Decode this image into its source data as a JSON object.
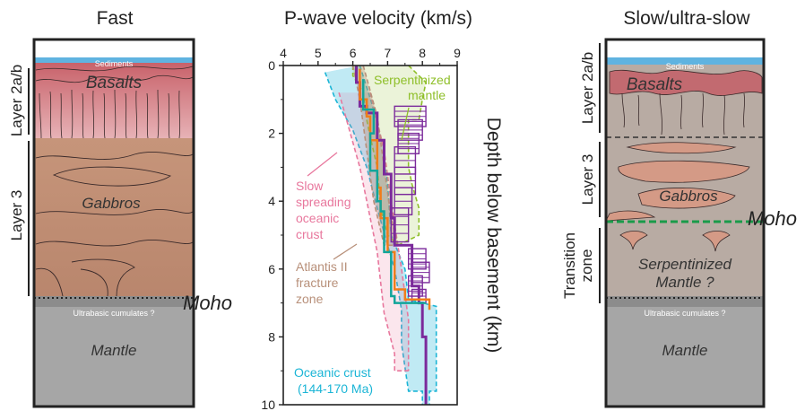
{
  "left_column": {
    "title": "Fast",
    "sediments": "Sediments",
    "basalts": "Basalts",
    "gabbros": "Gabbros",
    "ultrabasic": "Ultrabasic cumulates ?",
    "mantle": "Mantle",
    "layer_2ab": "Layer 2a/b",
    "layer_3": "Layer 3",
    "moho": "Moho"
  },
  "right_column": {
    "title": "Slow/ultra-slow",
    "sediments": "Sediments",
    "basalts": "Basalts",
    "gabbros": "Gabbros",
    "serpentinized": "Serpentinized",
    "mantle_q": "Mantle ?",
    "ultrabasic": "Ultrabasic cumulates ?",
    "mantle": "Mantle",
    "layer_2ab": "Layer 2a/b",
    "layer_3": "Layer 3",
    "transition_1": "Transition",
    "transition_2": "zone",
    "moho": "Moho"
  },
  "chart_data": {
    "type": "line",
    "title": "P-wave velocity (km/s)",
    "ylabel": "Depth below basement (km)",
    "xlim": [
      4,
      9
    ],
    "ylim": [
      10,
      0
    ],
    "x_ticks": [
      "4",
      "5",
      "6",
      "7",
      "8",
      "9"
    ],
    "y_ticks": [
      "0",
      "2",
      "4",
      "6",
      "8",
      "10"
    ],
    "annotations": {
      "serpentinized_1": "Serpentinized",
      "serpentinized_2": "mantle",
      "slow_1": "Slow",
      "slow_2": "spreading",
      "slow_3": "oceanic",
      "slow_4": "crust",
      "atlantis_1": "Atlantis II",
      "atlantis_2": "fracture",
      "atlantis_3": "zone",
      "oceanic_1": "Oceanic crust",
      "oceanic_2": "(144-170 Ma)"
    },
    "colors": {
      "serpentinized": "#8fbf2a",
      "slow_spreading": "#e8779d",
      "atlantis": "#b8907a",
      "oceanic_crust": "#1bb5d6",
      "profile_purple": "#7b2a9b",
      "profile_orange": "#f07d1a",
      "profile_teal": "#12a59a"
    },
    "series": [
      {
        "name": "Serpentinized mantle",
        "kind": "envelope",
        "left": [
          [
            6.0,
            0
          ],
          [
            6.0,
            0.3
          ],
          [
            6.3,
            0.8
          ],
          [
            6.4,
            1.6
          ],
          [
            6.5,
            2.1
          ],
          [
            6.7,
            3.0
          ],
          [
            6.8,
            4.2
          ],
          [
            7.0,
            5.0
          ],
          [
            7.3,
            5.3
          ]
        ],
        "right": [
          [
            7.6,
            0
          ],
          [
            8.1,
            0.5
          ],
          [
            8.0,
            1.0
          ],
          [
            7.9,
            1.6
          ],
          [
            7.6,
            1.6
          ],
          [
            7.6,
            3.0
          ],
          [
            7.7,
            3.5
          ],
          [
            7.9,
            4.2
          ],
          [
            7.9,
            5.0
          ],
          [
            7.3,
            5.3
          ]
        ]
      },
      {
        "name": "Slow spreading oceanic crust",
        "kind": "envelope",
        "left": [
          [
            5.6,
            0.8
          ],
          [
            6.2,
            3.0
          ],
          [
            6.7,
            5.5
          ],
          [
            6.9,
            7.3
          ],
          [
            7.2,
            8.5
          ],
          [
            7.2,
            9.0
          ],
          [
            7.6,
            9.0
          ]
        ],
        "right": [
          [
            6.5,
            0.8
          ],
          [
            6.9,
            2.5
          ],
          [
            7.1,
            4.0
          ],
          [
            7.4,
            6.0
          ],
          [
            7.6,
            7.5
          ],
          [
            7.6,
            9.0
          ]
        ]
      },
      {
        "name": "Atlantis II fracture zone",
        "kind": "envelope",
        "left": [
          [
            6.0,
            0
          ],
          [
            6.2,
            1.0
          ],
          [
            6.4,
            2.5
          ],
          [
            6.6,
            4.0
          ],
          [
            6.9,
            5.3
          ],
          [
            7.3,
            5.3
          ]
        ],
        "right": [
          [
            6.3,
            0
          ],
          [
            6.7,
            1.5
          ],
          [
            6.9,
            3.0
          ],
          [
            7.1,
            4.5
          ],
          [
            7.3,
            5.3
          ]
        ]
      },
      {
        "name": "Oceanic crust (144-170 Ma)",
        "kind": "envelope",
        "left": [
          [
            5.2,
            0.2
          ],
          [
            5.5,
            1.0
          ],
          [
            6.0,
            1.9
          ],
          [
            6.4,
            3.0
          ],
          [
            6.7,
            4.2
          ],
          [
            7.0,
            5.3
          ],
          [
            7.2,
            6.0
          ],
          [
            7.4,
            7.2
          ],
          [
            7.4,
            8.2
          ],
          [
            7.6,
            9.6
          ],
          [
            8.0,
            9.6
          ],
          [
            8.0,
            10.0
          ]
        ],
        "right": [
          [
            6.2,
            0
          ],
          [
            6.6,
            1.3
          ],
          [
            6.9,
            2.5
          ],
          [
            7.0,
            3.5
          ],
          [
            7.1,
            5.0
          ],
          [
            7.5,
            6.0
          ],
          [
            7.6,
            6.9
          ],
          [
            8.0,
            7.0
          ],
          [
            8.4,
            7.1
          ],
          [
            8.4,
            9.6
          ],
          [
            8.2,
            9.6
          ],
          [
            8.2,
            10.0
          ]
        ]
      },
      {
        "name": "Profile (purple)",
        "kind": "step",
        "points": [
          [
            6.1,
            0
          ],
          [
            6.2,
            0.5
          ],
          [
            6.4,
            1.2
          ],
          [
            6.7,
            1.4
          ],
          [
            6.9,
            2.2
          ],
          [
            7.1,
            3.2
          ],
          [
            7.2,
            4.5
          ],
          [
            7.3,
            5.3
          ],
          [
            7.7,
            5.3
          ],
          [
            7.9,
            6.5
          ],
          [
            8.0,
            7.0
          ],
          [
            8.1,
            8.0
          ],
          [
            8.1,
            10.0
          ]
        ]
      },
      {
        "name": "Profile (orange)",
        "kind": "step",
        "points": [
          [
            6.2,
            0.1
          ],
          [
            6.4,
            1.0
          ],
          [
            6.5,
            1.5
          ],
          [
            6.7,
            2.2
          ],
          [
            6.8,
            3.6
          ],
          [
            7.0,
            4.5
          ],
          [
            7.2,
            5.5
          ],
          [
            7.5,
            6.6
          ],
          [
            8.2,
            6.9
          ],
          [
            8.2,
            7.2
          ]
        ]
      },
      {
        "name": "Profile (teal)",
        "kind": "step",
        "points": [
          [
            6.3,
            0.4
          ],
          [
            6.6,
            1.3
          ],
          [
            6.5,
            2.0
          ],
          [
            6.7,
            3.1
          ],
          [
            6.8,
            4.0
          ],
          [
            6.9,
            4.3
          ],
          [
            6.9,
            5.0
          ],
          [
            7.1,
            5.5
          ],
          [
            7.2,
            6.8
          ],
          [
            7.6,
            7.0
          ],
          [
            8.1,
            7.0
          ]
        ]
      }
    ],
    "velocity_rects": [
      [
        7.2,
        1.2,
        8.1,
        1.8
      ],
      [
        7.3,
        1.6,
        8.0,
        2.2
      ],
      [
        7.3,
        2.0,
        7.9,
        2.6
      ],
      [
        7.2,
        2.4,
        7.8,
        3.2
      ],
      [
        7.2,
        3.0,
        7.8,
        3.8
      ],
      [
        7.2,
        3.6,
        7.7,
        4.4
      ],
      [
        7.1,
        4.2,
        7.6,
        5.2
      ],
      [
        7.6,
        5.4,
        8.1,
        6.0
      ],
      [
        7.7,
        5.8,
        8.2,
        6.4
      ],
      [
        7.6,
        6.2,
        8.0,
        6.8
      ],
      [
        7.7,
        6.6,
        8.1,
        7.0
      ]
    ]
  }
}
